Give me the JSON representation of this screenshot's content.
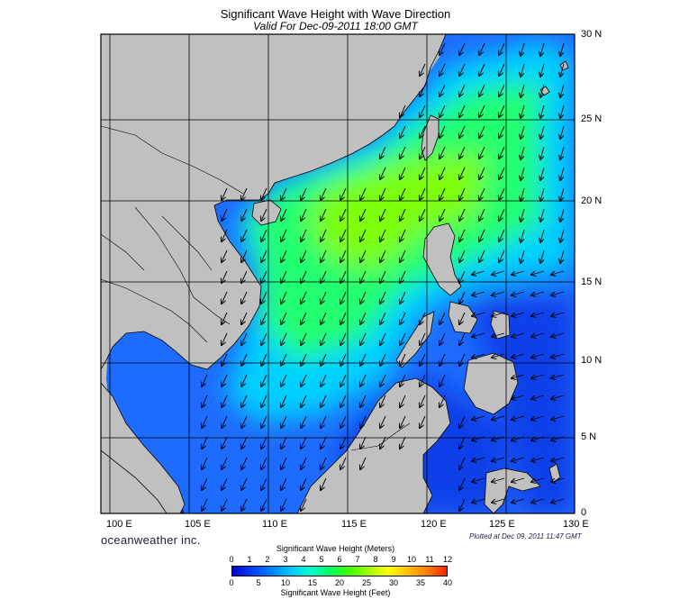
{
  "map": {
    "title": "Significant Wave Height with Wave Direction",
    "subtitle": "Valid For Dec-09-2011 18:00 GMT",
    "lon_labels": [
      "100 E",
      "105 E",
      "110 E",
      "115 E",
      "120 E",
      "125 E",
      "130 E"
    ],
    "lat_labels": [
      "30 N",
      "25 N",
      "20 N",
      "15 N",
      "10 N",
      "5 N",
      "0"
    ],
    "brand": "oceanweather inc.",
    "plotted": "Plotted at Dec 09, 2011 11:47 GMT",
    "wave_direction": "toward the southwest",
    "colors": {
      "land": "#c0c0c0",
      "coast": "#000000",
      "grid": "#000000",
      "arrows": "#000000"
    }
  },
  "legend": {
    "meters_title": "Significant Wave Height (Meters)",
    "feet_title": "Significant Wave Height (Feet)",
    "meters_ticks": [
      "0",
      "1",
      "2",
      "3",
      "4",
      "5",
      "6",
      "7",
      "8",
      "9",
      "10",
      "11",
      "12"
    ],
    "feet_ticks": [
      "0",
      "5",
      "10",
      "15",
      "20",
      "25",
      "30",
      "35",
      "40"
    ],
    "colors": [
      "#0000c8",
      "#0040ff",
      "#0080ff",
      "#00c8ff",
      "#00ffd0",
      "#00ff60",
      "#40ff00",
      "#a0ff00",
      "#ffff00",
      "#ffc000",
      "#ff8000",
      "#ff2000"
    ]
  }
}
